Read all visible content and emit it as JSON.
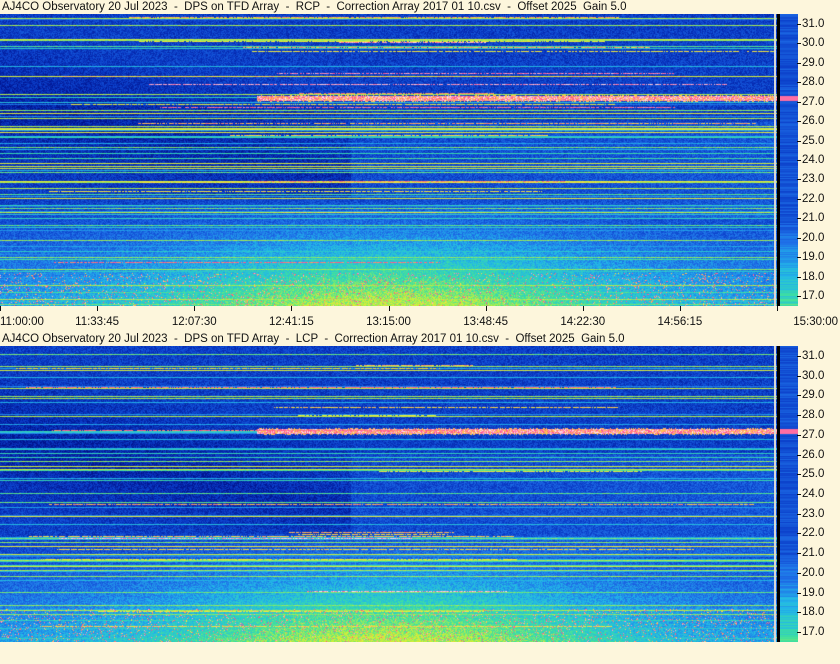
{
  "chart_data": [
    {
      "type": "heatmap",
      "title": "AJ4CO Observatory 20 Jul 2023  -  DPS on TFD Array  -  RCP  -  Correction Array 2017 01 10.csv  -  Offset 2025  Gain 5.0",
      "x_tick_labels": [
        "11:00:00",
        "11:33:45",
        "12:07:30",
        "12:41:15",
        "13:15:00",
        "13:48:45",
        "14:22:30",
        "14:56:15",
        "15:30:00"
      ],
      "y_tick_labels": [
        "31.0",
        "30.0",
        "29.0",
        "28.0",
        "27.0",
        "26.0",
        "25.0",
        "24.0",
        "23.0",
        "22.0",
        "21.0",
        "20.0",
        "19.0",
        "18.0",
        "17.0"
      ],
      "ylim": [
        16.5,
        31.5
      ],
      "colormap": [
        "#00108a",
        "#0a3cc8",
        "#1f70e8",
        "#22b8e8",
        "#3ee0a0",
        "#c8f03a",
        "#ffe640",
        "#ff4a8c",
        "#ffffff"
      ]
    },
    {
      "type": "heatmap",
      "title": "AJ4CO Observatory 20 Jul 2023  -  DPS on TFD Array  -  LCP  -  Correction Array 2017 01 10.csv  -  Offset 2025  Gain 5.0",
      "y_tick_labels": [
        "31.0",
        "30.0",
        "29.0",
        "28.0",
        "27.0",
        "26.0",
        "25.0",
        "24.0",
        "23.0",
        "22.0",
        "21.0",
        "20.0",
        "19.0",
        "18.0",
        "17.0"
      ],
      "ylim": [
        16.5,
        31.5
      ],
      "colormap": [
        "#00108a",
        "#0a3cc8",
        "#1f70e8",
        "#22b8e8",
        "#3ee0a0",
        "#c8f03a",
        "#ffe640",
        "#ff4a8c",
        "#ffffff"
      ]
    }
  ]
}
